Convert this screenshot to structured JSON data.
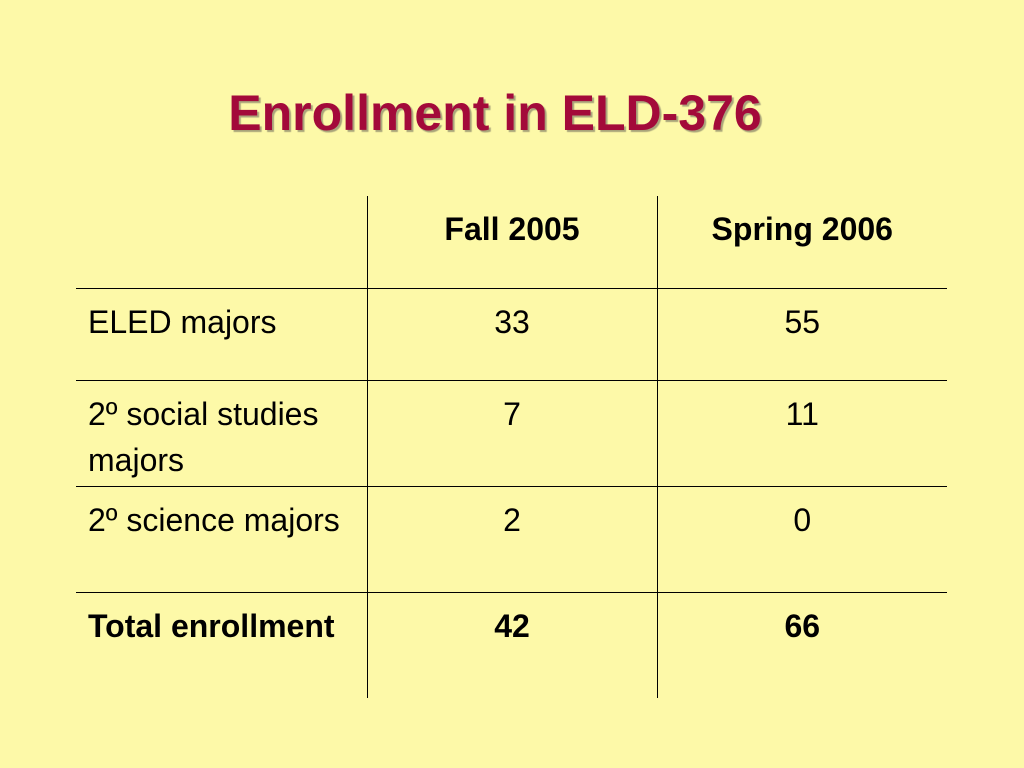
{
  "slide": {
    "title": "Enrollment in ELD-376",
    "colors": {
      "background": "#fdf9a8",
      "title": "#a30a3a",
      "text": "#000000"
    }
  },
  "table": {
    "headers": [
      "",
      "Fall 2005",
      "Spring 2006"
    ],
    "rows": [
      {
        "label": "ELED majors",
        "fall": "33",
        "spring": "55"
      },
      {
        "label": "2º social studies majors",
        "fall": "7",
        "spring": "11"
      },
      {
        "label": "2º science majors",
        "fall": "2",
        "spring": "0"
      },
      {
        "label": "Total enrollment",
        "fall": "42",
        "spring": "66"
      }
    ]
  }
}
